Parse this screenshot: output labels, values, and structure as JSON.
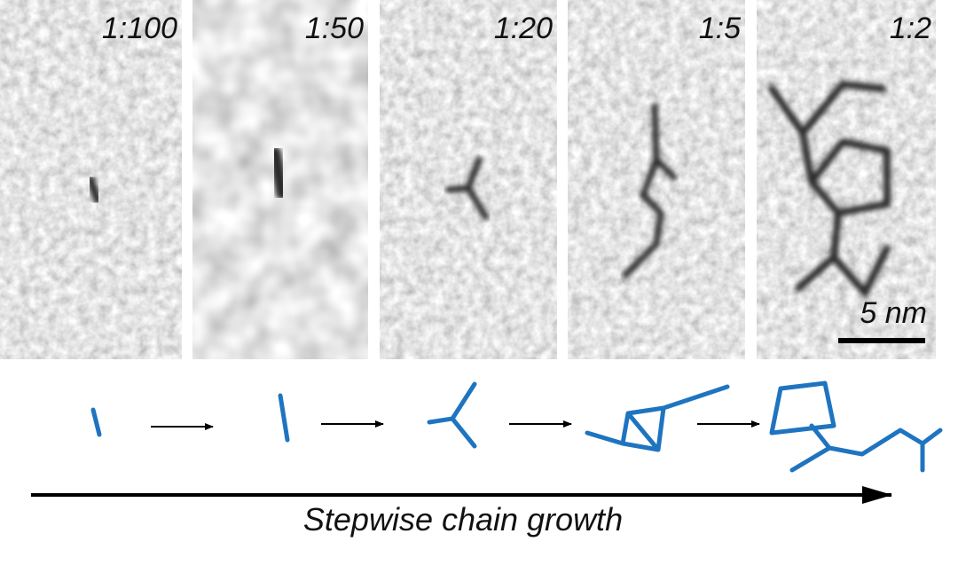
{
  "panels": [
    {
      "label": "1:100"
    },
    {
      "label": "1:50"
    },
    {
      "label": "1:20"
    },
    {
      "label": "1:5"
    },
    {
      "label": "1:2"
    }
  ],
  "scale_bar": {
    "label": "5 nm"
  },
  "caption": "Stepwise chain growth"
}
